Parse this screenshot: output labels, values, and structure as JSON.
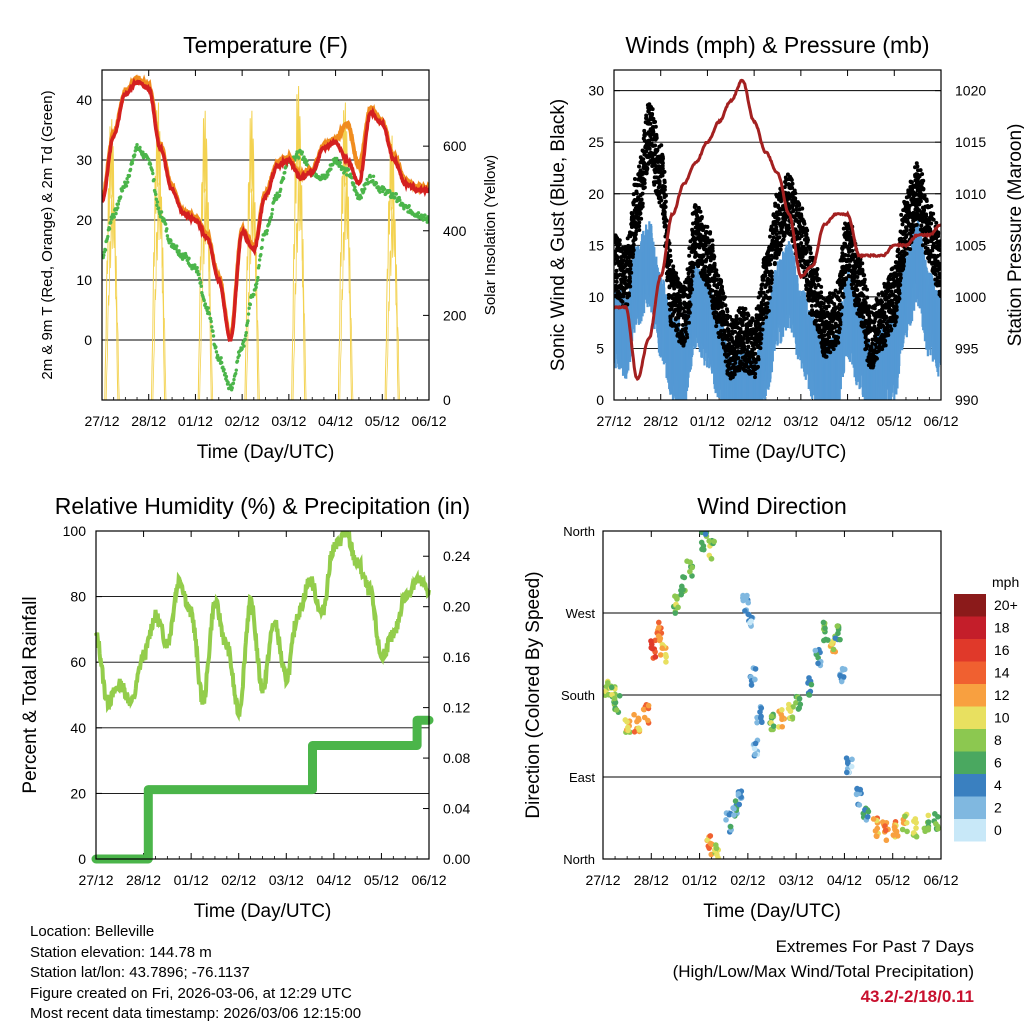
{
  "colors": {
    "red": "#d42020",
    "orange": "#f08c1e",
    "green": "#4bb54a",
    "yellow": "#f3d250",
    "black": "#000000",
    "blue": "#5499d4",
    "maroon": "#a32020",
    "lightgreen": "#93cd4b",
    "accent": "#c8102e"
  },
  "time_ticks": [
    "27/12",
    "28/12",
    "01/12",
    "02/12",
    "03/12",
    "04/12",
    "05/12",
    "06/12"
  ],
  "time_axis_label": "Time (Day/UTC)",
  "chart_data": [
    {
      "id": "temperature",
      "type": "line",
      "title": "Temperature (F)",
      "xlabel": "Time (Day/UTC)",
      "ylabel": "2m & 9m T (Red, Orange) & 2m Td (Green)",
      "ylabel_right": "Solar Insolation (Yellow)",
      "ylim": [
        -10,
        45
      ],
      "yticks": [
        0,
        10,
        20,
        30,
        40
      ],
      "ylim_right": [
        0,
        780
      ],
      "yticks_right": [
        0,
        200,
        400,
        600
      ],
      "grid": true,
      "x": [
        0,
        0.25,
        0.5,
        0.75,
        1,
        1.25,
        1.5,
        1.75,
        2,
        2.25,
        2.5,
        2.75,
        3,
        3.25,
        3.5,
        3.75,
        4,
        4.25,
        4.5,
        4.75,
        5,
        5.25,
        5.5,
        5.75,
        6,
        6.25,
        6.5,
        6.75,
        7
      ],
      "series": [
        {
          "name": "2m T",
          "color": "red",
          "axis": "left",
          "values": [
            23,
            34,
            41,
            43,
            42,
            32,
            25,
            21,
            20,
            17,
            10,
            0,
            18,
            15,
            24,
            29,
            30,
            27,
            28,
            32,
            33,
            30,
            26,
            38,
            36,
            30,
            26,
            25,
            25
          ]
        },
        {
          "name": "9m T",
          "color": "orange",
          "axis": "left",
          "values": [
            23.5,
            34.5,
            41.5,
            43.5,
            42.5,
            32.5,
            25.5,
            21.5,
            20.5,
            17.5,
            10.5,
            0.5,
            18.5,
            15.5,
            24.5,
            29.5,
            30.5,
            27.5,
            28.5,
            32.5,
            33.5,
            36,
            29,
            38.5,
            36.5,
            30.5,
            26.5,
            25.5,
            25.5
          ]
        },
        {
          "name": "2m Td",
          "color": "green",
          "axis": "left",
          "values": [
            14,
            21,
            26,
            32,
            30,
            21,
            16,
            14,
            12,
            5,
            -3,
            -8,
            -1,
            8,
            18,
            24,
            30,
            31,
            28,
            27,
            30,
            28,
            24,
            27,
            25,
            24,
            22,
            21,
            20
          ]
        },
        {
          "name": "Solar Insolation",
          "color": "yellow",
          "axis": "right",
          "peaks": [
            0.2,
            1.2,
            2.2,
            3.2,
            4.2,
            5.2,
            6.2
          ],
          "peak_values": [
            680,
            720,
            700,
            700,
            760,
            720,
            640
          ]
        }
      ]
    },
    {
      "id": "winds",
      "type": "line",
      "title": "Winds (mph) & Pressure (mb)",
      "xlabel": "Time (Day/UTC)",
      "ylabel": "Sonic Wind & Gust (Blue, Black)",
      "ylabel_right": "Station Pressure (Maroon)",
      "ylim": [
        0,
        32
      ],
      "yticks": [
        0,
        5,
        10,
        15,
        20,
        25,
        30
      ],
      "ylim_right": [
        990,
        1022
      ],
      "yticks_right": [
        990,
        995,
        1000,
        1005,
        1010,
        1015,
        1020
      ],
      "grid": true,
      "x": [
        0,
        0.25,
        0.5,
        0.75,
        1,
        1.25,
        1.5,
        1.75,
        2,
        2.25,
        2.5,
        2.75,
        3,
        3.25,
        3.5,
        3.75,
        4,
        4.25,
        4.5,
        4.75,
        5,
        5.25,
        5.5,
        5.75,
        6,
        6.25,
        6.5,
        6.75,
        7
      ],
      "series": [
        {
          "name": "Sonic Wind",
          "color": "blue",
          "axis": "left",
          "values": [
            9,
            8,
            13,
            15,
            10,
            6,
            5,
            11,
            9,
            6,
            2,
            3,
            2,
            6,
            11,
            13,
            9,
            6,
            3,
            4,
            10,
            7,
            3,
            5,
            6,
            12,
            15,
            10,
            8
          ]
        },
        {
          "name": "Gust",
          "color": "black",
          "axis": "left",
          "values": [
            13,
            12,
            19,
            26,
            22,
            10,
            8,
            16,
            14,
            9,
            5,
            6,
            5,
            11,
            17,
            19,
            16,
            11,
            7,
            8,
            15,
            11,
            6,
            8,
            10,
            17,
            20,
            16,
            13
          ]
        },
        {
          "name": "Station Pressure",
          "color": "maroon",
          "axis": "right",
          "values": [
            999,
            999,
            992,
            996,
            1002,
            1008,
            1011,
            1013,
            1015,
            1017,
            1019,
            1021,
            1017,
            1014,
            1012,
            1008,
            1002,
            1003,
            1007,
            1008,
            1008,
            1004,
            1004,
            1004,
            1005,
            1005,
            1006,
            1006,
            1007
          ]
        }
      ]
    },
    {
      "id": "humidity",
      "type": "line",
      "title": "Relative Humidity (%) & Precipitation (in)",
      "xlabel": "Time (Day/UTC)",
      "ylabel": "Percent & Total Rainfall",
      "ylim": [
        0,
        100
      ],
      "yticks": [
        0,
        20,
        40,
        60,
        80,
        100
      ],
      "ylim_right": [
        0,
        0.26
      ],
      "yticks_right": [
        "0.00",
        "0.04",
        "0.08",
        "0.12",
        "0.16",
        "0.20",
        "0.24"
      ],
      "grid": true,
      "x": [
        0,
        0.25,
        0.5,
        0.75,
        1,
        1.25,
        1.5,
        1.75,
        2,
        2.25,
        2.5,
        2.75,
        3,
        3.25,
        3.5,
        3.75,
        4,
        4.25,
        4.5,
        4.75,
        5,
        5.25,
        5.5,
        5.75,
        6,
        6.25,
        6.5,
        6.75,
        7
      ],
      "series": [
        {
          "name": "Relative Humidity",
          "color": "lightgreen",
          "axis": "left",
          "values": [
            68,
            48,
            53,
            48,
            62,
            74,
            66,
            85,
            75,
            48,
            78,
            65,
            45,
            78,
            52,
            72,
            55,
            75,
            85,
            75,
            95,
            99,
            90,
            82,
            62,
            68,
            80,
            85,
            82
          ]
        },
        {
          "name": "Total Precipitation",
          "color": "green",
          "axis": "right",
          "steps": [
            [
              0,
              0
            ],
            [
              1.1,
              0
            ],
            [
              1.1,
              0.055
            ],
            [
              4.55,
              0.055
            ],
            [
              4.55,
              0.09
            ],
            [
              6.75,
              0.09
            ],
            [
              6.75,
              0.11
            ],
            [
              7,
              0.11
            ]
          ]
        }
      ]
    },
    {
      "id": "direction",
      "type": "scatter",
      "title": "Wind Direction",
      "xlabel": "Time (Day/UTC)",
      "ylabel": "Direction (Colored By Speed)",
      "ylim": [
        0,
        360
      ],
      "yticks": [
        "North",
        "East",
        "South",
        "West",
        "North"
      ],
      "grid": true,
      "colorbar": {
        "title": "mph",
        "labels": [
          "20+",
          "18",
          "16",
          "14",
          "12",
          "10",
          "8",
          "6",
          "4",
          "2",
          "0"
        ],
        "colors": [
          "#8b1a1a",
          "#c41e2a",
          "#e0392a",
          "#f06030",
          "#f8a040",
          "#e8e060",
          "#8cc850",
          "#4aa860",
          "#3a80c0",
          "#80b8e0",
          "#c8e8f8"
        ]
      },
      "points": [
        [
          0.1,
          185,
          9
        ],
        [
          0.2,
          180,
          8
        ],
        [
          0.3,
          170,
          7
        ],
        [
          0.5,
          145,
          10
        ],
        [
          0.7,
          150,
          12
        ],
        [
          0.9,
          160,
          13
        ],
        [
          1.05,
          230,
          15
        ],
        [
          1.15,
          250,
          13
        ],
        [
          1.25,
          225,
          11
        ],
        [
          1.5,
          280,
          8
        ],
        [
          1.65,
          300,
          6
        ],
        [
          1.8,
          320,
          7
        ],
        [
          2.1,
          350,
          6
        ],
        [
          2.25,
          340,
          8
        ],
        [
          2.2,
          15,
          12
        ],
        [
          2.35,
          10,
          9
        ],
        [
          2.6,
          40,
          4
        ],
        [
          2.75,
          55,
          4
        ],
        [
          2.85,
          65,
          3
        ],
        [
          2.95,
          280,
          3
        ],
        [
          3.05,
          260,
          2
        ],
        [
          3.1,
          200,
          2
        ],
        [
          3.15,
          120,
          2
        ],
        [
          3.25,
          160,
          3
        ],
        [
          3.5,
          150,
          8
        ],
        [
          3.7,
          155,
          11
        ],
        [
          3.9,
          160,
          9
        ],
        [
          4.05,
          170,
          7
        ],
        [
          4.3,
          190,
          5
        ],
        [
          4.45,
          220,
          4
        ],
        [
          4.6,
          250,
          7
        ],
        [
          4.75,
          235,
          10
        ],
        [
          4.85,
          245,
          6
        ],
        [
          4.95,
          200,
          3
        ],
        [
          5.1,
          100,
          2
        ],
        [
          5.3,
          70,
          3
        ],
        [
          5.45,
          45,
          4
        ],
        [
          5.65,
          35,
          12
        ],
        [
          5.85,
          30,
          13
        ],
        [
          6.05,
          35,
          12
        ],
        [
          6.25,
          40,
          10
        ],
        [
          6.45,
          35,
          9
        ],
        [
          6.7,
          38,
          8
        ],
        [
          6.9,
          40,
          7
        ]
      ]
    }
  ],
  "info": {
    "location": "Location: Belleville",
    "elevation": "Station elevation: 144.78 m",
    "latlon": "Station lat/lon: 43.7896; -76.1137",
    "created": "Figure created on Fri, 2026-03-06, at 12:29 UTC",
    "recent": "Most recent data timestamp: 2026/03/06 12:15:00"
  },
  "extremes": {
    "title": "Extremes For Past 7 Days",
    "subtitle": "(High/Low/Max Wind/Total Precipitation)",
    "values": "43.2/-2/18/0.11"
  }
}
